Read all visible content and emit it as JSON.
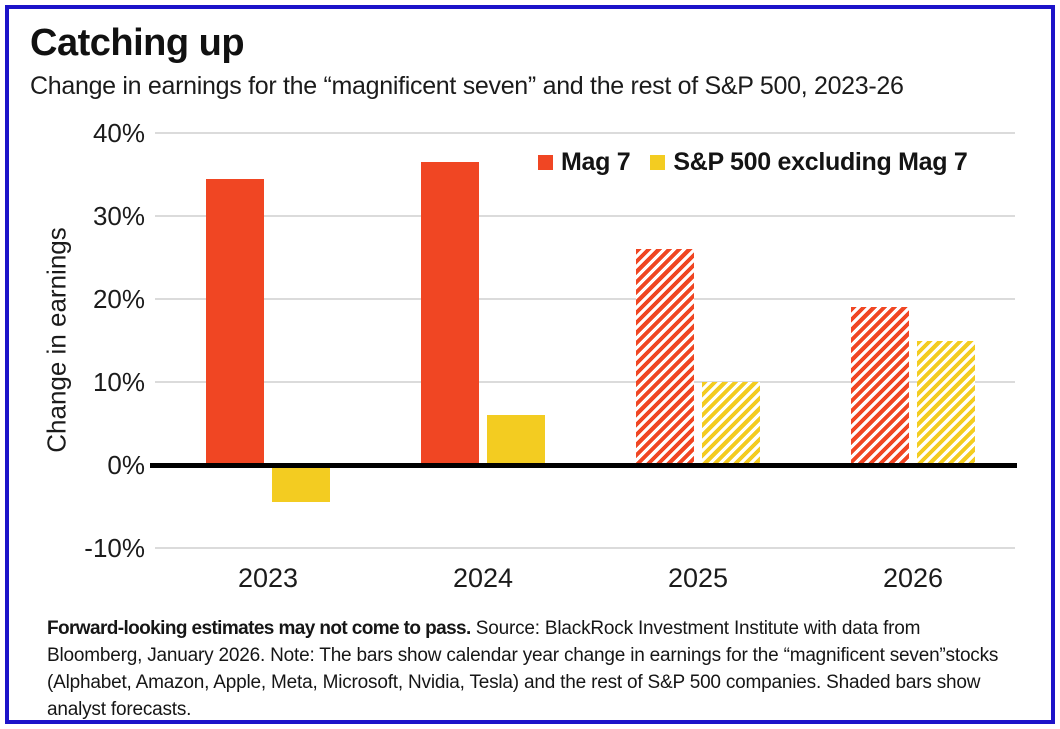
{
  "header": {
    "title": "Catching up",
    "subtitle": "Change in earnings for the “magnificent seven” and the rest of S&P 500, 2023-26"
  },
  "chart_data": {
    "type": "bar",
    "title": "Catching up",
    "subtitle": "Change in earnings for the “magnificent seven” and the rest of S&P 500, 2023-26",
    "ylabel": "Change in earnings",
    "xlabel": "",
    "categories": [
      "2023",
      "2024",
      "2025",
      "2026"
    ],
    "series": [
      {
        "name": "Mag 7",
        "slug": "mag7",
        "color": "#f04623",
        "values": [
          34.5,
          36.5,
          26,
          19
        ],
        "forecast": [
          false,
          false,
          true,
          true
        ]
      },
      {
        "name": "S&P 500 excluding Mag 7",
        "slug": "sp500-ex-mag7",
        "color": "#f3cc21",
        "values": [
          -4.5,
          6,
          10,
          15
        ],
        "forecast": [
          false,
          false,
          true,
          true
        ]
      }
    ],
    "ylim": [
      -10,
      40
    ],
    "yticks": [
      40,
      30,
      20,
      10,
      0,
      -10
    ],
    "ytick_labels": [
      "40%",
      "30%",
      "20%",
      "10%",
      "0%",
      "-10%"
    ],
    "grid": true,
    "legend_position": "top-right",
    "annotation": "Shaded bars show analyst forecasts"
  },
  "footnote": {
    "bold": "Forward-looking estimates may not come to pass.",
    "rest": " Source: BlackRock Investment Institute with data from Bloomberg, January 2026. Note: The bars show calendar year change in earnings for the “magnificent seven”stocks (Alphabet, Amazon, Apple, Meta, Microsoft, Nvidia, Tesla) and the rest of S&P 500 companies. Shaded bars show analyst forecasts."
  },
  "colors": {
    "mag7": "#f04623",
    "sp500_ex_mag7": "#f3cc21",
    "frame_border": "#1c13c9",
    "gridline": "#dbdbdb",
    "zero_line": "#000000"
  }
}
